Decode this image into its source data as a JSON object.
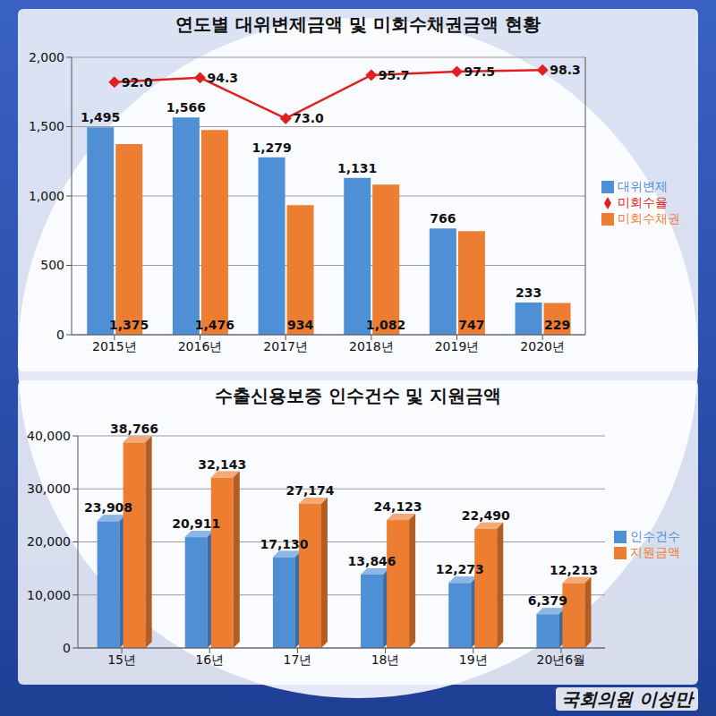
{
  "chart_data": [
    {
      "type": "bar",
      "title": "연도별 대위변제금액 및 미회수채권금액 현황",
      "categories": [
        "2015년",
        "2016년",
        "2017년",
        "2018년",
        "2019년",
        "2020년"
      ],
      "series": [
        {
          "name": "미회수율",
          "type": "line",
          "axis": "y2",
          "color": "#e02020",
          "marker": "diamond",
          "values": [
            92.0,
            94.3,
            73.0,
            95.7,
            97.5,
            98.3
          ],
          "value_labels": [
            "92.0",
            "94.3",
            "73.0",
            "95.7",
            "97.5",
            "98.3"
          ]
        },
        {
          "name": "대위변제",
          "type": "bar",
          "color": "#4f8fd6",
          "values": [
            1495,
            1566,
            1279,
            1131,
            766,
            233
          ],
          "value_labels": [
            "1,495",
            "1,566",
            "1,279",
            "1,131",
            "766",
            "233"
          ]
        },
        {
          "name": "미회수채권",
          "type": "bar",
          "color": "#ed7d31",
          "values": [
            1375,
            1476,
            934,
            1082,
            747,
            229
          ],
          "value_labels": [
            "1,375",
            "1,476",
            "934",
            "1,082",
            "747",
            "229"
          ]
        }
      ],
      "ylim": [
        0,
        2000
      ],
      "yticks": [
        0,
        500,
        {
          "value": 1000,
          "label": "1,000"
        },
        {
          "value": 1500,
          "label": "1,500"
        },
        {
          "value": 2000,
          "label": "2,000"
        }
      ],
      "y2lim": [
        -40,
        105
      ],
      "y2ticks": [],
      "grid": true,
      "legend": "right",
      "data_labels": true
    },
    {
      "type": "bar",
      "title": "수출신용보증 인수건수 및 지원금액",
      "categories": [
        "15년",
        "16년",
        "17년",
        "18년",
        "19년",
        "20년6월"
      ],
      "series": [
        {
          "name": "인수건수",
          "color": "#4f8fd6",
          "values": [
            23908,
            20911,
            17130,
            13846,
            12273,
            6379
          ],
          "value_labels": [
            "23,908",
            "20,911",
            "17,130",
            "13,846",
            "12,273",
            "6,379"
          ]
        },
        {
          "name": "지원금액",
          "color": "#ed7d31",
          "values": [
            38766,
            32143,
            27174,
            24123,
            22490,
            12213
          ],
          "value_labels": [
            "38,766",
            "32,143",
            "27,174",
            "24,123",
            "22,490",
            "12,213"
          ]
        }
      ],
      "ylim": [
        0,
        40000
      ],
      "yticks": [
        0,
        {
          "value": 10000,
          "label": "10,000"
        },
        {
          "value": 20000,
          "label": "20,000"
        },
        {
          "value": 30000,
          "label": "30,000"
        },
        {
          "value": 40000,
          "label": "40,000"
        }
      ],
      "grid": true,
      "legend": "right",
      "data_labels": true,
      "annotations": [
        "국회의원 이성만"
      ]
    }
  ]
}
